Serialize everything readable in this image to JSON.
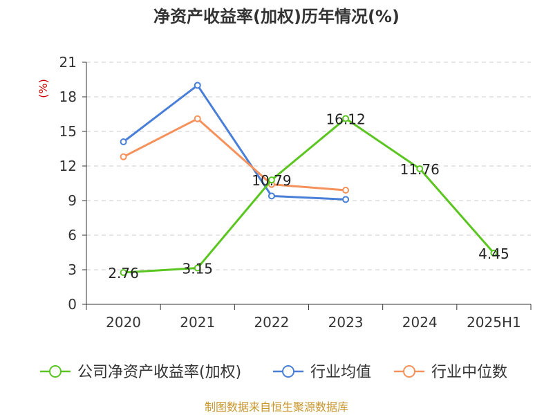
{
  "chart_data": {
    "type": "line",
    "title": "净资产收益率(加权)历年情况(%)",
    "ylabel": "(%)",
    "categories": [
      "2020",
      "2021",
      "2022",
      "2023",
      "2024",
      "2025H1"
    ],
    "yticks": [
      "0",
      "3",
      "6",
      "9",
      "12",
      "15",
      "18",
      "21"
    ],
    "ylim": [
      0,
      21
    ],
    "grid": true,
    "legend_position": "bottom",
    "series": [
      {
        "name": "公司净资产收益率(加权)",
        "color": "#5bc521",
        "values": [
          2.76,
          3.15,
          10.79,
          16.12,
          11.76,
          4.45
        ],
        "labels": [
          "2.76",
          "3.15",
          "10.79",
          "16.12",
          "11.76",
          "4.45"
        ]
      },
      {
        "name": "行业均值",
        "color": "#4a7fd8",
        "values": [
          14.1,
          19.0,
          9.4,
          9.1,
          null,
          null
        ]
      },
      {
        "name": "行业中位数",
        "color": "#f5915a",
        "values": [
          12.8,
          16.1,
          10.4,
          9.9,
          null,
          null
        ]
      }
    ]
  },
  "footer": {
    "source": "制图数据来自恒生聚源数据库"
  }
}
